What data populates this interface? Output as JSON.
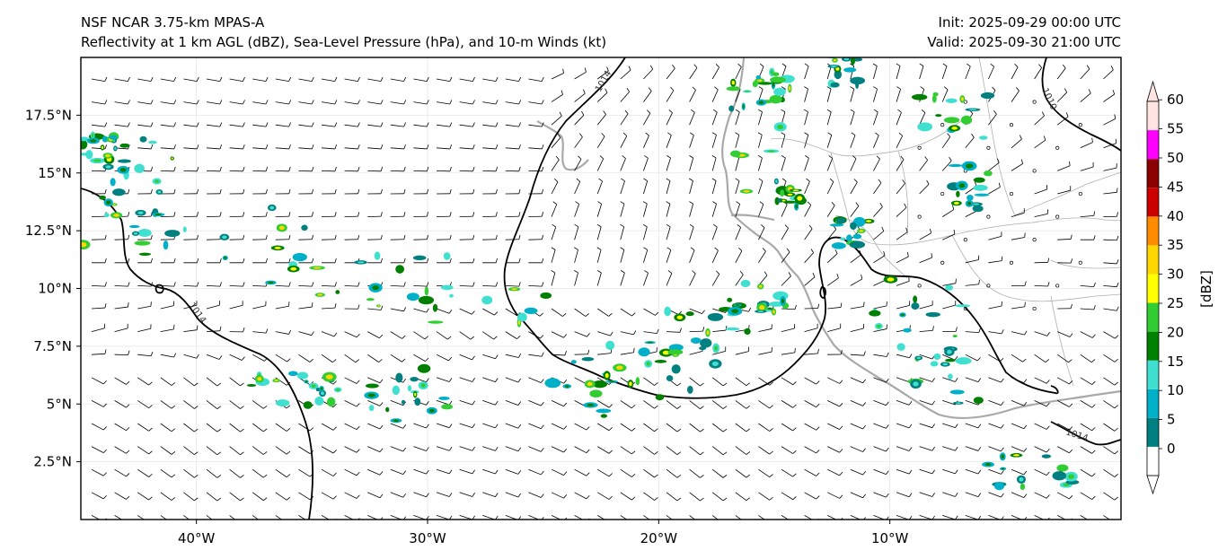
{
  "header": {
    "title_left_line1": "NSF NCAR 3.75-km MPAS-A",
    "title_left_line2": "Reflectivity at 1 km AGL (dBZ), Sea-Level Pressure (hPa), and 10-m Winds (kt)",
    "title_right_line1": "Init: 2025-09-29 00:00 UTC",
    "title_right_line2": "Valid: 2025-09-30 21:00 UTC"
  },
  "map": {
    "lon_range": [
      -45,
      0
    ],
    "lat_range": [
      0,
      20
    ],
    "lat_ticks": [
      {
        "value": 17.5,
        "label": "17.5°N"
      },
      {
        "value": 15,
        "label": "15°N"
      },
      {
        "value": 12.5,
        "label": "12.5°N"
      },
      {
        "value": 10,
        "label": "10°N"
      },
      {
        "value": 7.5,
        "label": "7.5°N"
      },
      {
        "value": 5,
        "label": "5°N"
      },
      {
        "value": 2.5,
        "label": "2.5°N"
      }
    ],
    "lon_ticks": [
      {
        "value": -40,
        "label": "40°W"
      },
      {
        "value": -30,
        "label": "30°W"
      },
      {
        "value": -20,
        "label": "20°W"
      },
      {
        "value": -10,
        "label": "10°W"
      }
    ],
    "contour_labels": [
      "1014",
      "1014",
      "1014",
      "1010"
    ],
    "colors": {
      "isobar": "#000000",
      "coastline": "#a9a9a9",
      "border": "#b0b0b0",
      "grid": "#e6e6e6"
    }
  },
  "colorbar": {
    "label": "[dBZ]",
    "levels": [
      "0",
      "5",
      "10",
      "15",
      "20",
      "25",
      "30",
      "35",
      "40",
      "45",
      "50",
      "55",
      "60"
    ],
    "colors": [
      "#ffffff",
      "#008080",
      "#00b0c8",
      "#40e0d0",
      "#008000",
      "#32cd32",
      "#ffff00",
      "#ffd700",
      "#ff8c00",
      "#cc0000",
      "#8b0000",
      "#ff00ff",
      "#ffe4e1"
    ]
  }
}
